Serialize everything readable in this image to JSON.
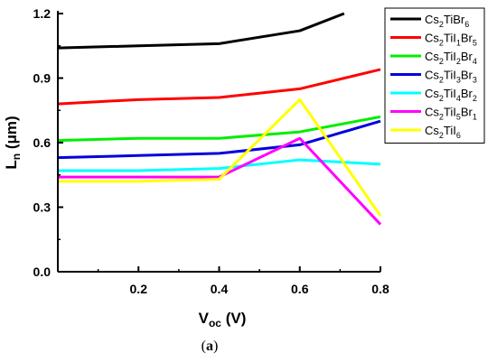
{
  "chart_data": {
    "type": "line",
    "xlabel": {
      "main": "V",
      "sub": "oc",
      "unit": " (V)"
    },
    "ylabel": {
      "main": "L",
      "sub": "n",
      "unit": " (μm)"
    },
    "caption": {
      "open": "(",
      "letter": "a",
      "close": ")"
    },
    "xlim": [
      0,
      0.8
    ],
    "ylim": [
      0,
      1.2
    ],
    "xticks": [
      0.2,
      0.4,
      0.6,
      0.8
    ],
    "xtick_labels": [
      "0.2",
      "0.4",
      "0.6",
      "0.8"
    ],
    "yticks": [
      0.0,
      0.3,
      0.6,
      0.9,
      1.2
    ],
    "ytick_labels": [
      "0.0",
      "0.3",
      "0.6",
      "0.9",
      "1.2"
    ],
    "legend_position": "top-right",
    "series": [
      {
        "parts": [
          [
            "Cs",
            ""
          ],
          [
            "2",
            "sub"
          ],
          [
            "TiBr",
            ""
          ],
          [
            "6",
            "sub"
          ]
        ],
        "color": "#000000",
        "points": [
          [
            0,
            1.04
          ],
          [
            0.2,
            1.05
          ],
          [
            0.4,
            1.06
          ],
          [
            0.6,
            1.12
          ],
          [
            0.71,
            1.2
          ]
        ]
      },
      {
        "parts": [
          [
            "Cs",
            ""
          ],
          [
            "2",
            "sub"
          ],
          [
            "TiI",
            ""
          ],
          [
            "1",
            "sub"
          ],
          [
            "Br",
            ""
          ],
          [
            "5",
            "sub"
          ]
        ],
        "color": "#ff0000",
        "points": [
          [
            0,
            0.78
          ],
          [
            0.2,
            0.8
          ],
          [
            0.4,
            0.81
          ],
          [
            0.6,
            0.85
          ],
          [
            0.8,
            0.94
          ]
        ]
      },
      {
        "parts": [
          [
            "Cs",
            ""
          ],
          [
            "2",
            "sub"
          ],
          [
            "TiI",
            ""
          ],
          [
            "2",
            "sub"
          ],
          [
            "Br",
            ""
          ],
          [
            "4",
            "sub"
          ]
        ],
        "color": "#00ee00",
        "points": [
          [
            0,
            0.61
          ],
          [
            0.2,
            0.62
          ],
          [
            0.4,
            0.62
          ],
          [
            0.6,
            0.65
          ],
          [
            0.8,
            0.72
          ]
        ]
      },
      {
        "parts": [
          [
            "Cs",
            ""
          ],
          [
            "2",
            "sub"
          ],
          [
            "TiI",
            ""
          ],
          [
            "3",
            "sub"
          ],
          [
            "Br",
            ""
          ],
          [
            "3",
            "sub"
          ]
        ],
        "color": "#0000dd",
        "points": [
          [
            0,
            0.53
          ],
          [
            0.2,
            0.54
          ],
          [
            0.4,
            0.55
          ],
          [
            0.6,
            0.59
          ],
          [
            0.8,
            0.7
          ]
        ]
      },
      {
        "parts": [
          [
            "Cs",
            ""
          ],
          [
            "2",
            "sub"
          ],
          [
            "TiI",
            ""
          ],
          [
            "4",
            "sub"
          ],
          [
            "Br",
            ""
          ],
          [
            "2",
            "sub"
          ]
        ],
        "color": "#00ffff",
        "points": [
          [
            0,
            0.47
          ],
          [
            0.2,
            0.47
          ],
          [
            0.4,
            0.48
          ],
          [
            0.6,
            0.52
          ],
          [
            0.8,
            0.5
          ]
        ]
      },
      {
        "parts": [
          [
            "Cs",
            ""
          ],
          [
            "2",
            "sub"
          ],
          [
            "TiI",
            ""
          ],
          [
            "5",
            "sub"
          ],
          [
            "Br",
            ""
          ],
          [
            "1",
            "sub"
          ]
        ],
        "color": "#ff00ff",
        "points": [
          [
            0,
            0.44
          ],
          [
            0.2,
            0.44
          ],
          [
            0.4,
            0.44
          ],
          [
            0.6,
            0.62
          ],
          [
            0.8,
            0.22
          ]
        ]
      },
      {
        "parts": [
          [
            "Cs",
            ""
          ],
          [
            "2",
            "sub"
          ],
          [
            "TiI",
            ""
          ],
          [
            "6",
            "sub"
          ]
        ],
        "color": "#ffff00",
        "points": [
          [
            0,
            0.42
          ],
          [
            0.2,
            0.42
          ],
          [
            0.4,
            0.43
          ],
          [
            0.6,
            0.8
          ],
          [
            0.8,
            0.26
          ]
        ]
      }
    ]
  }
}
